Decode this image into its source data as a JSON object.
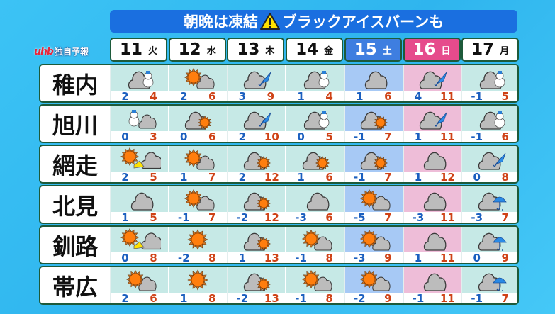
{
  "title": {
    "text_before": "朝晩は凍結",
    "warning_icon": "warning-icon",
    "text_after": "ブラックアイスバーンも",
    "color": "#1a6fe0"
  },
  "logo": {
    "brand": "uhb",
    "tagline": "独自予報"
  },
  "colors": {
    "low": "#1b5fbf",
    "high": "#cf4216",
    "saturday": "#3e7ee0",
    "sunday": "#e64b8c"
  },
  "days": [
    {
      "date": "11",
      "weekday": "火",
      "type": "weekday"
    },
    {
      "date": "12",
      "weekday": "水",
      "type": "weekday"
    },
    {
      "date": "13",
      "weekday": "木",
      "type": "weekday"
    },
    {
      "date": "14",
      "weekday": "金",
      "type": "weekday"
    },
    {
      "date": "15",
      "weekday": "土",
      "type": "sat"
    },
    {
      "date": "16",
      "weekday": "日",
      "type": "sun"
    },
    {
      "date": "17",
      "weekday": "月",
      "type": "weekday"
    }
  ],
  "cities": [
    {
      "name": "稚内",
      "forecast": [
        [
          "cloud-snow",
          "2",
          "4"
        ],
        [
          "sun-cloud",
          "2",
          "6"
        ],
        [
          "cloud-shower",
          "3",
          "9"
        ],
        [
          "cloud-snow",
          "1",
          "4"
        ],
        [
          "cloud",
          "1",
          "6"
        ],
        [
          "cloud-shower",
          "4",
          "11"
        ],
        [
          "cloud-snow",
          "-1",
          "5"
        ]
      ]
    },
    {
      "name": "旭川",
      "forecast": [
        [
          "snow-cloud",
          "0",
          "3"
        ],
        [
          "cloud-sun",
          "0",
          "6"
        ],
        [
          "cloud-shower",
          "2",
          "10"
        ],
        [
          "cloud-snow",
          "0",
          "5"
        ],
        [
          "cloud-sun",
          "-1",
          "7"
        ],
        [
          "cloud-shower",
          "1",
          "11"
        ],
        [
          "cloud-snow",
          "-1",
          "6"
        ]
      ]
    },
    {
      "name": "網走",
      "forecast": [
        [
          "sun-cloud-ice",
          "2",
          "5"
        ],
        [
          "sun-cloud",
          "1",
          "7"
        ],
        [
          "cloud-sun",
          "2",
          "12"
        ],
        [
          "cloud-sun",
          "1",
          "6"
        ],
        [
          "cloud-sun",
          "-1",
          "7"
        ],
        [
          "cloud",
          "1",
          "12"
        ],
        [
          "cloud-shower",
          "0",
          "8"
        ]
      ]
    },
    {
      "name": "北見",
      "forecast": [
        [
          "cloud",
          "1",
          "5"
        ],
        [
          "sun-cloud",
          "-1",
          "7"
        ],
        [
          "cloud-sun",
          "-2",
          "12"
        ],
        [
          "cloud",
          "-3",
          "6"
        ],
        [
          "sun-cloud",
          "-5",
          "7"
        ],
        [
          "cloud",
          "-3",
          "11"
        ],
        [
          "cloud-rain",
          "-3",
          "7"
        ]
      ]
    },
    {
      "name": "釧路",
      "forecast": [
        [
          "sun-cloud-ice",
          "0",
          "8"
        ],
        [
          "sun",
          "-2",
          "8"
        ],
        [
          "cloud-sun",
          "1",
          "13"
        ],
        [
          "sun-cloud",
          "-1",
          "8"
        ],
        [
          "sun-cloud",
          "-3",
          "9"
        ],
        [
          "cloud",
          "1",
          "11"
        ],
        [
          "cloud-rain",
          "0",
          "9"
        ]
      ]
    },
    {
      "name": "帯広",
      "forecast": [
        [
          "sun-cloud",
          "2",
          "6"
        ],
        [
          "sun",
          "1",
          "8"
        ],
        [
          "cloud-sun",
          "-2",
          "13"
        ],
        [
          "sun-cloud",
          "-1",
          "8"
        ],
        [
          "sun-cloud",
          "-2",
          "9"
        ],
        [
          "cloud",
          "-1",
          "11"
        ],
        [
          "cloud-rain",
          "-1",
          "7"
        ]
      ]
    }
  ]
}
